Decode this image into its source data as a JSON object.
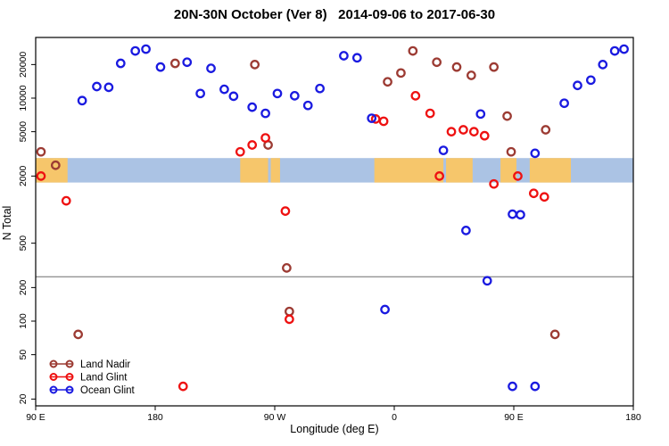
{
  "chart_data": {
    "type": "scatter",
    "title": "20N-30N October (Ver 8)   2014-09-06 to 2017-06-30",
    "xlabel": "Longitude (deg E)",
    "ylabel": "N Total",
    "x_axis": {
      "note": "longitude axis wraps eastward from 90E through dateline to 180 again; internal units run 90..540",
      "range": [
        90,
        540
      ],
      "ticks": [
        {
          "v": 90,
          "label": "90 E"
        },
        {
          "v": 180,
          "label": "180"
        },
        {
          "v": 270,
          "label": "90 W"
        },
        {
          "v": 360,
          "label": "0"
        },
        {
          "v": 450,
          "label": "90 E"
        },
        {
          "v": 540,
          "label": "180"
        }
      ]
    },
    "y_axis": {
      "scale": "log",
      "range": [
        17,
        35000
      ],
      "ticks": [
        {
          "v": 20000,
          "label": "20000"
        },
        {
          "v": 10000,
          "label": "10000"
        },
        {
          "v": 5000,
          "label": "5000"
        },
        {
          "v": 2000,
          "label": "2000"
        },
        {
          "v": 500,
          "label": "500"
        },
        {
          "v": 200,
          "label": "200"
        },
        {
          "v": 100,
          "label": "100"
        },
        {
          "v": 50,
          "label": "50"
        },
        {
          "v": 20,
          "label": "20"
        }
      ]
    },
    "reference_line_n": 250,
    "grid": false,
    "map_band": {
      "comment": "geography strip showing 20N-30N land/ocean along longitude",
      "n_range": [
        1750,
        2900
      ],
      "ocean_color": "#abc3e4",
      "land_color": "#f6c66b",
      "land_segments_lon": [
        [
          90,
          114
        ],
        [
          244,
          265
        ],
        [
          267,
          274
        ],
        [
          345,
          397
        ],
        [
          399,
          419
        ],
        [
          440,
          452
        ],
        [
          462,
          493
        ]
      ]
    },
    "legend": {
      "position": "bottom-left",
      "entries": [
        "Land Nadir",
        "Land Glint",
        "Ocean Glint"
      ]
    },
    "series": [
      {
        "name": "Land Nadir",
        "color": "#9c3b33",
        "points": [
          [
            94,
            3300
          ],
          [
            105,
            2500
          ],
          [
            122,
            76
          ],
          [
            195,
            20500
          ],
          [
            255,
            20000
          ],
          [
            265,
            3800
          ],
          [
            279,
            300
          ],
          [
            281,
            122
          ],
          [
            355,
            14000
          ],
          [
            365,
            16800
          ],
          [
            374,
            26500
          ],
          [
            392,
            21000
          ],
          [
            407,
            19000
          ],
          [
            418,
            16000
          ],
          [
            435,
            19000
          ],
          [
            445,
            6900
          ],
          [
            448,
            3300
          ],
          [
            474,
            5200
          ],
          [
            481,
            76
          ]
        ]
      },
      {
        "name": "Land Glint",
        "color": "#ee1111",
        "points": [
          [
            94,
            2000
          ],
          [
            113,
            1200
          ],
          [
            201,
            26
          ],
          [
            244,
            3300
          ],
          [
            253,
            3800
          ],
          [
            263,
            4400
          ],
          [
            278,
            970
          ],
          [
            281,
            104
          ],
          [
            346,
            6500
          ],
          [
            352,
            6200
          ],
          [
            376,
            10500
          ],
          [
            387,
            7300
          ],
          [
            394,
            2000
          ],
          [
            403,
            5000
          ],
          [
            412,
            5200
          ],
          [
            420,
            5000
          ],
          [
            428,
            4600
          ],
          [
            435,
            1700
          ],
          [
            453,
            2000
          ],
          [
            465,
            1400
          ],
          [
            473,
            1300
          ]
        ]
      },
      {
        "name": "Ocean Glint",
        "color": "#1a1ae0",
        "points": [
          [
            125,
            9500
          ],
          [
            136,
            12700
          ],
          [
            145,
            12500
          ],
          [
            154,
            20500
          ],
          [
            165,
            26500
          ],
          [
            173,
            27500
          ],
          [
            184,
            19000
          ],
          [
            204,
            21000
          ],
          [
            214,
            11000
          ],
          [
            222,
            18500
          ],
          [
            232,
            12000
          ],
          [
            239,
            10400
          ],
          [
            253,
            8300
          ],
          [
            263,
            7300
          ],
          [
            272,
            11000
          ],
          [
            285,
            10500
          ],
          [
            295,
            8600
          ],
          [
            304,
            12200
          ],
          [
            322,
            24000
          ],
          [
            332,
            23000
          ],
          [
            343,
            6600
          ],
          [
            353,
            127
          ],
          [
            397,
            3400
          ],
          [
            414,
            650
          ],
          [
            425,
            7200
          ],
          [
            430,
            230
          ],
          [
            449,
            910
          ],
          [
            455,
            900
          ],
          [
            449,
            26
          ],
          [
            466,
            26
          ],
          [
            466,
            3200
          ],
          [
            488,
            9000
          ],
          [
            498,
            13000
          ],
          [
            508,
            14500
          ],
          [
            517,
            20000
          ],
          [
            526,
            26500
          ],
          [
            533,
            27500
          ]
        ]
      }
    ],
    "style": {
      "frame_color": "#000000",
      "reference_line_color": "#6e6e6e",
      "marker": "open-circle"
    }
  }
}
